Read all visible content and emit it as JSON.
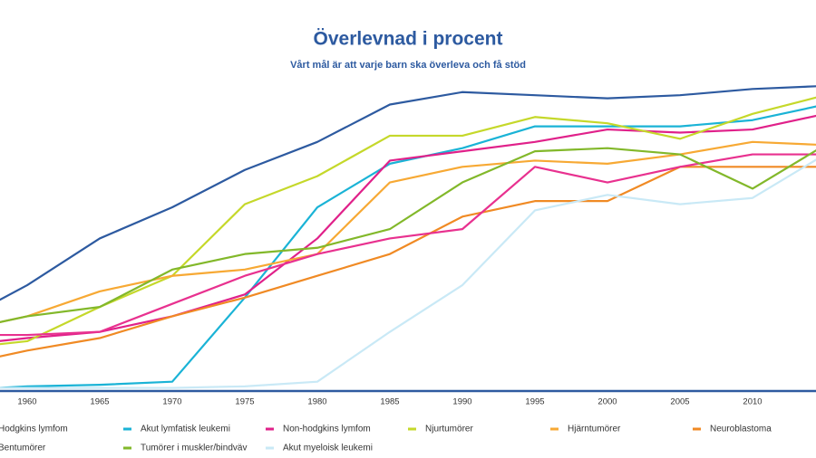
{
  "chart_data": {
    "type": "line",
    "title": "Överlevnad i procent",
    "subtitle": "Vårt mål är att varje barn ska överleva och få stöd",
    "x": [
      1958,
      1960,
      1965,
      1970,
      1975,
      1980,
      1985,
      1990,
      1995,
      2000,
      2005,
      2010,
      2015
    ],
    "xlim": [
      1958,
      2015
    ],
    "xticks": [
      1960,
      1965,
      1970,
      1975,
      1980,
      1985,
      1990,
      1995,
      2000,
      2005,
      2010
    ],
    "ylim": [
      0,
      100
    ],
    "series": [
      {
        "name": "Hodgkins lymfom",
        "color": "#2d5aa0",
        "values": [
          29,
          34,
          49,
          59,
          71,
          80,
          92,
          96,
          95,
          94,
          95,
          97,
          98
        ]
      },
      {
        "name": "Akut lymfatisk leukemi",
        "color": "#1ab3d6",
        "values": [
          1,
          1.5,
          2,
          3,
          30,
          59,
          73,
          78,
          85,
          85,
          85,
          87,
          92
        ]
      },
      {
        "name": "Non-hodgkins lymfom",
        "color": "#e0218a",
        "values": [
          16,
          17,
          19,
          24,
          31,
          49,
          74,
          77,
          80,
          84,
          83,
          84,
          89
        ]
      },
      {
        "name": "Njurtumörer",
        "color": "#c5d82a",
        "values": [
          15,
          16,
          27,
          37,
          60,
          69,
          82,
          82,
          88,
          86,
          81,
          89,
          95
        ]
      },
      {
        "name": "Hjärntumörer",
        "color": "#f7a934",
        "values": [
          22,
          24,
          32,
          37,
          39,
          44,
          67,
          72,
          74,
          73,
          76,
          80,
          79
        ]
      },
      {
        "name": "Neuroblastoma",
        "color": "#f08a24",
        "values": [
          11,
          13,
          17,
          24,
          30,
          37,
          44,
          56,
          61,
          61,
          72,
          72,
          72
        ]
      },
      {
        "name": "Bentumörer",
        "color": "#e8318f",
        "values": [
          18,
          18,
          19,
          28,
          37,
          44,
          49,
          52,
          72,
          67,
          72,
          76,
          76
        ]
      },
      {
        "name": "Tumörer i muskler/bindväv",
        "color": "#82b82a",
        "values": [
          22,
          24,
          27,
          39,
          44,
          46,
          52,
          67,
          77,
          78,
          76,
          65,
          79
        ]
      },
      {
        "name": "Akut myeloisk leukemi",
        "color": "#c9e9f6",
        "values": [
          1,
          1,
          1,
          1,
          1.5,
          3,
          19,
          34,
          58,
          63,
          60,
          62,
          76
        ]
      }
    ]
  }
}
